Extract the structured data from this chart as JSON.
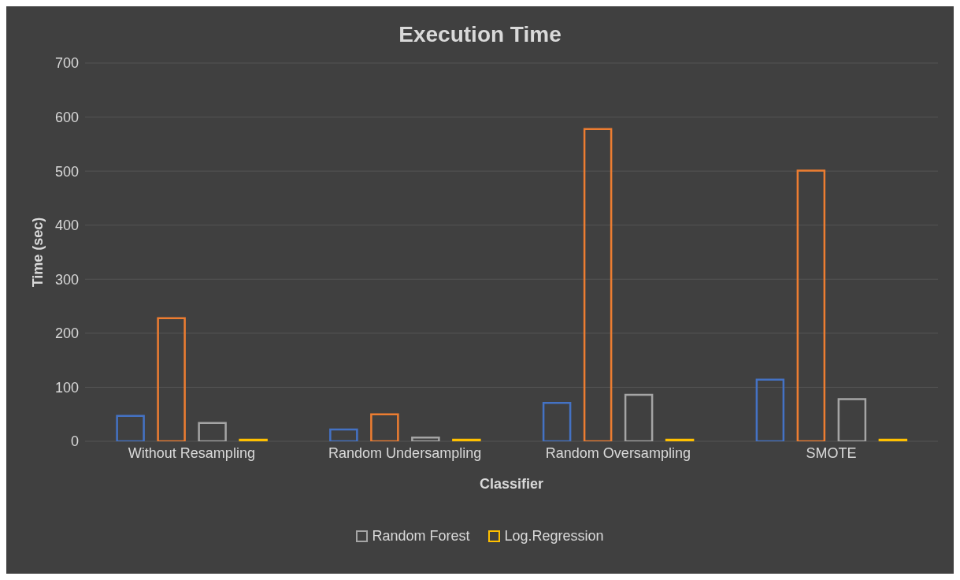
{
  "chart_data": {
    "type": "bar",
    "title": "Execution Time",
    "xlabel": "Classifier",
    "ylabel": "Time (sec)",
    "categories": [
      "Without Resampling",
      "Random Undersampling",
      "Random Oversampling",
      "SMOTE"
    ],
    "series": [
      {
        "color": "#4472c4",
        "values": [
          47,
          22,
          71,
          114
        ]
      },
      {
        "color": "#ed7d31",
        "values": [
          228,
          50,
          578,
          501
        ]
      },
      {
        "name": "Random Forest",
        "color": "#a5a5a5",
        "values": [
          34,
          7,
          86,
          78
        ]
      },
      {
        "name": "Log.Regression",
        "color": "#ffc000",
        "values": [
          3,
          3,
          3,
          3
        ]
      }
    ],
    "ylim": [
      0,
      700
    ],
    "yticks": [
      0,
      100,
      200,
      300,
      400,
      500,
      600,
      700
    ],
    "grid": "y",
    "legend": "bottom"
  }
}
